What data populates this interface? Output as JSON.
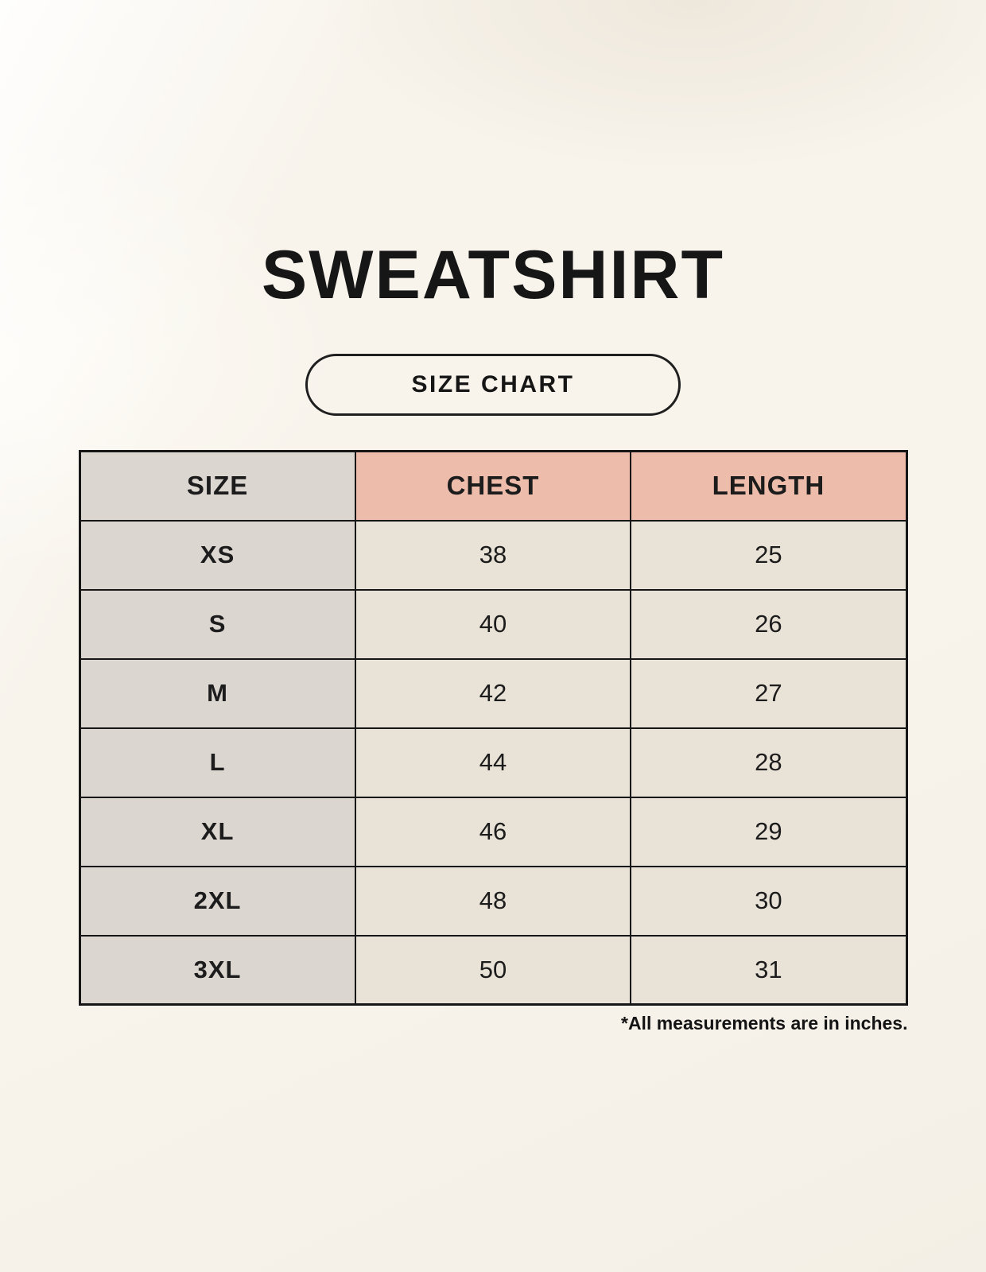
{
  "page": {
    "title": "SWEATSHIRT",
    "badge_label": "SIZE CHART",
    "footnote": "*All measurements are in inches."
  },
  "table": {
    "columns": [
      "SIZE",
      "CHEST",
      "LENGTH"
    ],
    "rows": [
      {
        "size": "XS",
        "chest": "38",
        "length": "25"
      },
      {
        "size": "S",
        "chest": "40",
        "length": "26"
      },
      {
        "size": "M",
        "chest": "42",
        "length": "27"
      },
      {
        "size": "L",
        "chest": "44",
        "length": "28"
      },
      {
        "size": "XL",
        "chest": "46",
        "length": "29"
      },
      {
        "size": "2XL",
        "chest": "48",
        "length": "30"
      },
      {
        "size": "3XL",
        "chest": "50",
        "length": "31"
      }
    ]
  },
  "colors": {
    "background": "#f8f4ec",
    "col_gray": "#dcd6d0",
    "accent_salmon": "#eebcab",
    "cell_cream": "#e9e2d6",
    "border_black": "#161616",
    "text_black": "#1c1c1c"
  }
}
